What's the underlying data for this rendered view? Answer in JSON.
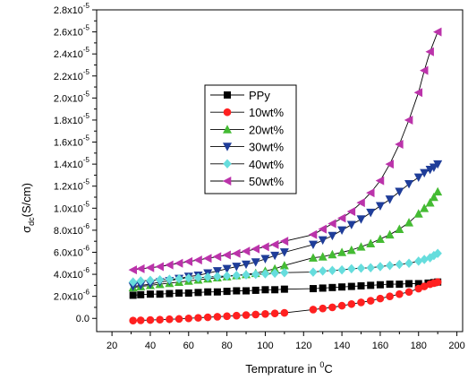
{
  "chart_data": {
    "type": "line",
    "xlabel": {
      "text": "Temprature in ",
      "sup": "0",
      "after": "C"
    },
    "ylabel": {
      "text": "σ",
      "sub": "dc",
      "after": "(S/cm)"
    },
    "xlim": [
      12,
      203
    ],
    "ylim": [
      -1.2e-06,
      2.8e-05
    ],
    "xticks": [
      20,
      40,
      60,
      80,
      100,
      120,
      140,
      160,
      180,
      200
    ],
    "xtick_labels": [
      "20",
      "40",
      "60",
      "80",
      "100",
      "120",
      "140",
      "160",
      "180",
      "200"
    ],
    "yticks": [
      0,
      2e-06,
      4e-06,
      6e-06,
      8e-06,
      1e-05,
      1.2e-05,
      1.4e-05,
      1.6e-05,
      1.8e-05,
      2e-05,
      2.2e-05,
      2.4e-05,
      2.6e-05,
      2.8e-05
    ],
    "ytick_labels": [
      {
        "mant": "0.0",
        "exp": ""
      },
      {
        "mant": "2.0x10",
        "exp": "-6"
      },
      {
        "mant": "4.0x10",
        "exp": "-6"
      },
      {
        "mant": "6.0x10",
        "exp": "-6"
      },
      {
        "mant": "8.0x10",
        "exp": "-6"
      },
      {
        "mant": "1.0x10",
        "exp": "-5"
      },
      {
        "mant": "1.2x10",
        "exp": "-5"
      },
      {
        "mant": "1.4x10",
        "exp": "-5"
      },
      {
        "mant": "1.6x10",
        "exp": "-5"
      },
      {
        "mant": "1.8x10",
        "exp": "-5"
      },
      {
        "mant": "2.0x10",
        "exp": "-5"
      },
      {
        "mant": "2.2x10",
        "exp": "-5"
      },
      {
        "mant": "2.4x10",
        "exp": "-5"
      },
      {
        "mant": "2.6x10",
        "exp": "-5"
      },
      {
        "mant": "2.8x10",
        "exp": "-5"
      }
    ],
    "grid": false,
    "legend_position": "upper-center",
    "series": [
      {
        "name": "PPy",
        "color": "#000000",
        "marker": "square",
        "points": [
          [
            31,
            2.1e-06
          ],
          [
            35,
            2.15e-06
          ],
          [
            40,
            2.2e-06
          ],
          [
            45,
            2.2e-06
          ],
          [
            50,
            2.25e-06
          ],
          [
            55,
            2.3e-06
          ],
          [
            60,
            2.3e-06
          ],
          [
            65,
            2.35e-06
          ],
          [
            70,
            2.4e-06
          ],
          [
            75,
            2.4e-06
          ],
          [
            80,
            2.45e-06
          ],
          [
            85,
            2.5e-06
          ],
          [
            90,
            2.5e-06
          ],
          [
            95,
            2.55e-06
          ],
          [
            100,
            2.6e-06
          ],
          [
            105,
            2.6e-06
          ],
          [
            110,
            2.65e-06
          ],
          [
            125,
            2.7e-06
          ],
          [
            130,
            2.75e-06
          ],
          [
            135,
            2.8e-06
          ],
          [
            140,
            2.85e-06
          ],
          [
            145,
            2.9e-06
          ],
          [
            150,
            2.95e-06
          ],
          [
            155,
            3e-06
          ],
          [
            160,
            3.05e-06
          ],
          [
            165,
            3.1e-06
          ],
          [
            170,
            3.1e-06
          ],
          [
            175,
            3.15e-06
          ],
          [
            180,
            3.15e-06
          ],
          [
            185,
            3.2e-06
          ],
          [
            188,
            3.25e-06
          ],
          [
            190,
            3.3e-06
          ]
        ]
      },
      {
        "name": "10wt%",
        "color": "#ff2020",
        "marker": "circle",
        "points": [
          [
            31,
            -2e-07
          ],
          [
            35,
            -1.8e-07
          ],
          [
            40,
            -1.5e-07
          ],
          [
            45,
            -1.2e-07
          ],
          [
            50,
            -8e-08
          ],
          [
            55,
            -5e-08
          ],
          [
            60,
            0
          ],
          [
            65,
            5e-08
          ],
          [
            70,
            1e-07
          ],
          [
            75,
            1.5e-07
          ],
          [
            80,
            2e-07
          ],
          [
            85,
            2.5e-07
          ],
          [
            90,
            3e-07
          ],
          [
            95,
            3.5e-07
          ],
          [
            100,
            4e-07
          ],
          [
            105,
            4.5e-07
          ],
          [
            110,
            5e-07
          ],
          [
            125,
            8e-07
          ],
          [
            130,
            9e-07
          ],
          [
            135,
            1e-06
          ],
          [
            140,
            1.15e-06
          ],
          [
            145,
            1.3e-06
          ],
          [
            150,
            1.45e-06
          ],
          [
            155,
            1.6e-06
          ],
          [
            160,
            1.8e-06
          ],
          [
            165,
            2e-06
          ],
          [
            170,
            2.2e-06
          ],
          [
            175,
            2.4e-06
          ],
          [
            180,
            2.7e-06
          ],
          [
            183,
            2.9e-06
          ],
          [
            186,
            3.1e-06
          ],
          [
            188,
            3.2e-06
          ],
          [
            190,
            3.3e-06
          ]
        ]
      },
      {
        "name": "20wt%",
        "color": "#44bb33",
        "marker": "triangle-up",
        "points": [
          [
            31,
            2.8e-06
          ],
          [
            35,
            2.9e-06
          ],
          [
            40,
            3e-06
          ],
          [
            45,
            3.1e-06
          ],
          [
            50,
            3.2e-06
          ],
          [
            55,
            3.3e-06
          ],
          [
            60,
            3.4e-06
          ],
          [
            65,
            3.5e-06
          ],
          [
            70,
            3.6e-06
          ],
          [
            75,
            3.7e-06
          ],
          [
            80,
            3.8e-06
          ],
          [
            85,
            3.9e-06
          ],
          [
            90,
            4e-06
          ],
          [
            95,
            4.1e-06
          ],
          [
            100,
            4.3e-06
          ],
          [
            105,
            4.5e-06
          ],
          [
            110,
            4.8e-06
          ],
          [
            125,
            5.5e-06
          ],
          [
            130,
            5.6e-06
          ],
          [
            135,
            5.8e-06
          ],
          [
            140,
            6e-06
          ],
          [
            145,
            6.2e-06
          ],
          [
            150,
            6.5e-06
          ],
          [
            155,
            6.8e-06
          ],
          [
            160,
            7.2e-06
          ],
          [
            165,
            7.6e-06
          ],
          [
            170,
            8.1e-06
          ],
          [
            175,
            8.7e-06
          ],
          [
            180,
            9.5e-06
          ],
          [
            183,
            1e-05
          ],
          [
            186,
            1.05e-05
          ],
          [
            188,
            1.1e-05
          ],
          [
            190,
            1.15e-05
          ]
        ]
      },
      {
        "name": "30wt%",
        "color": "#1f3d99",
        "marker": "triangle-down",
        "points": [
          [
            31,
            2.9e-06
          ],
          [
            35,
            3e-06
          ],
          [
            40,
            3.1e-06
          ],
          [
            45,
            3.3e-06
          ],
          [
            50,
            3.4e-06
          ],
          [
            55,
            3.6e-06
          ],
          [
            60,
            3.8e-06
          ],
          [
            65,
            3.9e-06
          ],
          [
            70,
            4.1e-06
          ],
          [
            75,
            4.3e-06
          ],
          [
            80,
            4.5e-06
          ],
          [
            85,
            4.7e-06
          ],
          [
            90,
            4.9e-06
          ],
          [
            95,
            5.1e-06
          ],
          [
            100,
            5.4e-06
          ],
          [
            105,
            5.7e-06
          ],
          [
            110,
            6e-06
          ],
          [
            125,
            6.7e-06
          ],
          [
            130,
            7.1e-06
          ],
          [
            135,
            7.5e-06
          ],
          [
            140,
            8e-06
          ],
          [
            145,
            8.5e-06
          ],
          [
            150,
            9e-06
          ],
          [
            155,
            9.6e-06
          ],
          [
            160,
            1.02e-05
          ],
          [
            165,
            1.08e-05
          ],
          [
            170,
            1.15e-05
          ],
          [
            175,
            1.22e-05
          ],
          [
            180,
            1.28e-05
          ],
          [
            183,
            1.32e-05
          ],
          [
            186,
            1.35e-05
          ],
          [
            188,
            1.37e-05
          ],
          [
            190,
            1.4e-05
          ]
        ]
      },
      {
        "name": "40wt%",
        "color": "#66dddd",
        "marker": "diamond",
        "points": [
          [
            31,
            3.3e-06
          ],
          [
            35,
            3.4e-06
          ],
          [
            40,
            3.45e-06
          ],
          [
            45,
            3.5e-06
          ],
          [
            50,
            3.55e-06
          ],
          [
            55,
            3.6e-06
          ],
          [
            60,
            3.65e-06
          ],
          [
            65,
            3.7e-06
          ],
          [
            70,
            3.75e-06
          ],
          [
            75,
            3.8e-06
          ],
          [
            80,
            3.85e-06
          ],
          [
            85,
            3.9e-06
          ],
          [
            90,
            3.95e-06
          ],
          [
            95,
            4e-06
          ],
          [
            100,
            4.05e-06
          ],
          [
            105,
            4.1e-06
          ],
          [
            110,
            4.15e-06
          ],
          [
            125,
            4.2e-06
          ],
          [
            130,
            4.3e-06
          ],
          [
            135,
            4.35e-06
          ],
          [
            140,
            4.4e-06
          ],
          [
            145,
            4.5e-06
          ],
          [
            150,
            4.55e-06
          ],
          [
            155,
            4.6e-06
          ],
          [
            160,
            4.7e-06
          ],
          [
            165,
            4.8e-06
          ],
          [
            170,
            4.9e-06
          ],
          [
            175,
            5e-06
          ],
          [
            180,
            5.2e-06
          ],
          [
            183,
            5.35e-06
          ],
          [
            186,
            5.5e-06
          ],
          [
            188,
            5.7e-06
          ],
          [
            190,
            5.9e-06
          ]
        ]
      },
      {
        "name": "50wt%",
        "color": "#bb33aa",
        "marker": "triangle-left",
        "points": [
          [
            31,
            4.4e-06
          ],
          [
            35,
            4.5e-06
          ],
          [
            40,
            4.6e-06
          ],
          [
            45,
            4.7e-06
          ],
          [
            50,
            4.85e-06
          ],
          [
            55,
            5e-06
          ],
          [
            60,
            5.15e-06
          ],
          [
            65,
            5.3e-06
          ],
          [
            70,
            5.45e-06
          ],
          [
            75,
            5.6e-06
          ],
          [
            80,
            5.75e-06
          ],
          [
            85,
            5.9e-06
          ],
          [
            90,
            6.1e-06
          ],
          [
            95,
            6.3e-06
          ],
          [
            100,
            6.5e-06
          ],
          [
            105,
            6.7e-06
          ],
          [
            110,
            7e-06
          ],
          [
            125,
            7.6e-06
          ],
          [
            130,
            8.1e-06
          ],
          [
            135,
            8.6e-06
          ],
          [
            140,
            9.1e-06
          ],
          [
            145,
            9.7e-06
          ],
          [
            150,
            1.05e-05
          ],
          [
            155,
            1.14e-05
          ],
          [
            160,
            1.25e-05
          ],
          [
            165,
            1.4e-05
          ],
          [
            170,
            1.58e-05
          ],
          [
            175,
            1.8e-05
          ],
          [
            180,
            2.05e-05
          ],
          [
            183,
            2.25e-05
          ],
          [
            186,
            2.42e-05
          ],
          [
            190,
            2.6e-05
          ]
        ]
      }
    ]
  }
}
